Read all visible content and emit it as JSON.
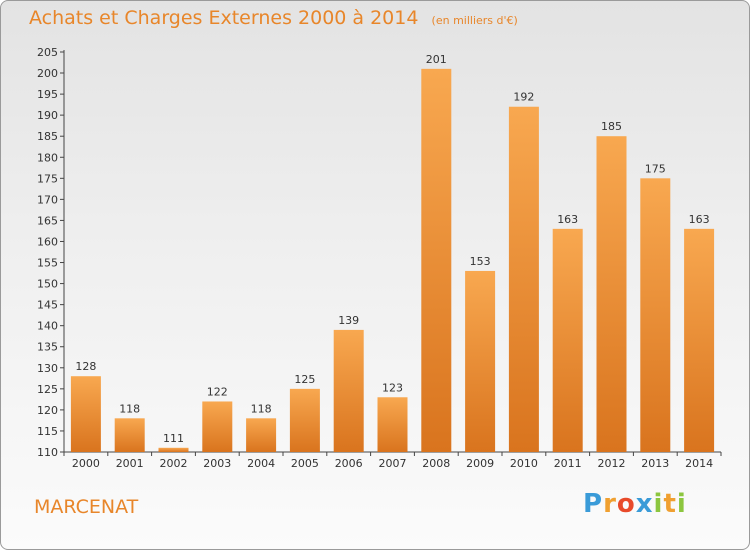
{
  "chart_data": {
    "type": "bar",
    "title": "Achats et Charges Externes 2000 à 2014",
    "subtitle": "(en milliers d'€)",
    "categories": [
      "2000",
      "2001",
      "2002",
      "2003",
      "2004",
      "2005",
      "2006",
      "2007",
      "2008",
      "2009",
      "2010",
      "2011",
      "2012",
      "2013",
      "2014"
    ],
    "values": [
      128,
      118,
      111,
      122,
      118,
      125,
      139,
      123,
      201,
      153,
      192,
      163,
      185,
      175,
      163
    ],
    "ylim": [
      110,
      205
    ],
    "yticks": [
      110,
      115,
      120,
      125,
      130,
      135,
      140,
      145,
      150,
      155,
      160,
      165,
      170,
      175,
      180,
      185,
      190,
      195,
      200,
      205
    ],
    "grid": false,
    "legend": "none",
    "colors": {
      "bar_top": "#f8a850",
      "bar_bottom": "#d9741e",
      "text": "#e8862a"
    }
  },
  "footer": {
    "commune": "MARCENAT"
  },
  "brand": {
    "name": "Proxiti",
    "letters": [
      {
        "ch": "P",
        "color": "#3a9bd8"
      },
      {
        "ch": "r",
        "color": "#f0a030"
      },
      {
        "ch": "o",
        "color": "#e84a2a"
      },
      {
        "ch": "x",
        "color": "#3a9bd8"
      },
      {
        "ch": "i",
        "color": "#8cc63f"
      },
      {
        "ch": "t",
        "color": "#f0a030"
      },
      {
        "ch": "i",
        "color": "#8cc63f"
      }
    ]
  }
}
